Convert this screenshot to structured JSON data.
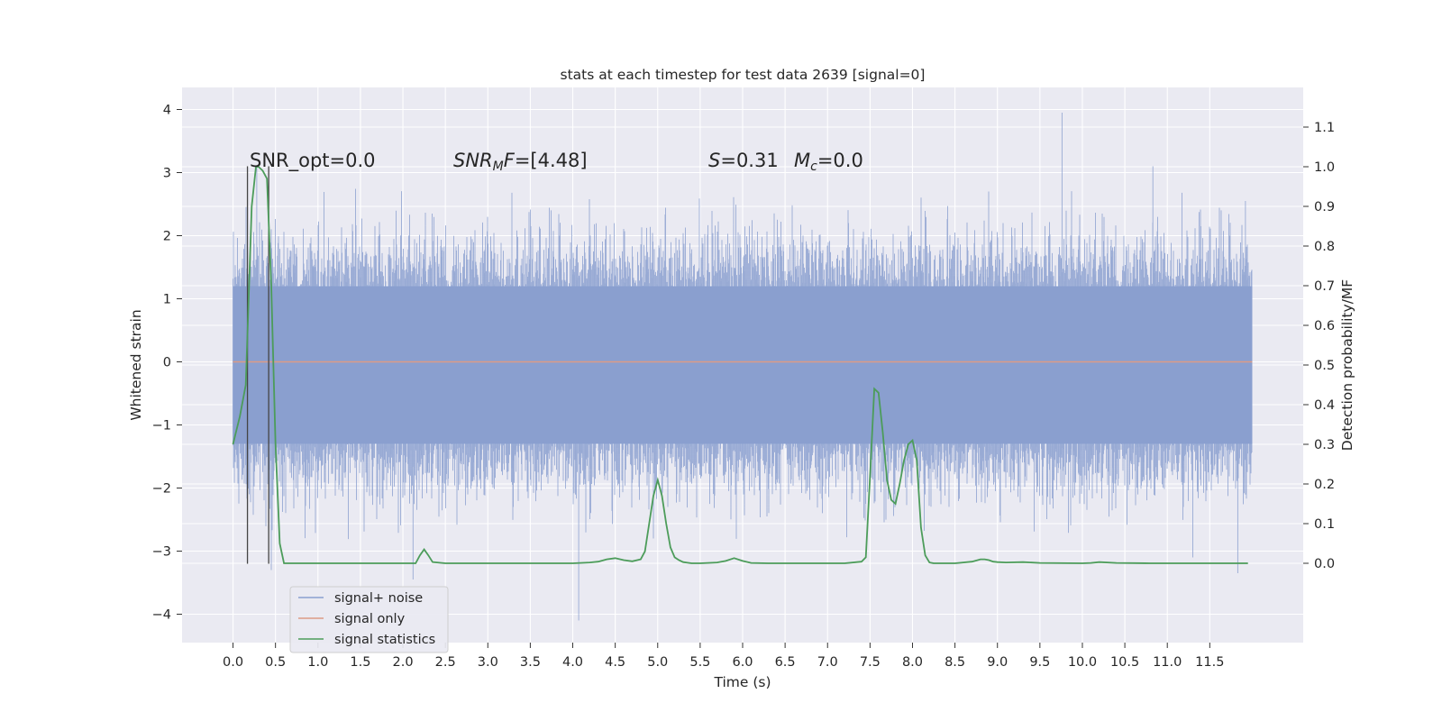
{
  "chart_data": {
    "type": "line",
    "title": "stats at each timestep for test data 2639 [signal=0]",
    "xlabel": "Time (s)",
    "ylabel": "Whitened strain",
    "ylabel_right": "Detection probability/MF",
    "xlim": [
      -0.6,
      12.6
    ],
    "ylim": [
      -4.45,
      4.35
    ],
    "ylim_right": [
      -0.2,
      1.2
    ],
    "grid": true,
    "x_ticks": [
      "0.0",
      "0.5",
      "1.0",
      "1.5",
      "2.0",
      "2.5",
      "3.0",
      "3.5",
      "4.0",
      "4.5",
      "5.0",
      "5.5",
      "6.0",
      "6.5",
      "7.0",
      "7.5",
      "8.0",
      "8.5",
      "9.0",
      "9.5",
      "10.0",
      "10.5",
      "11.0",
      "11.5"
    ],
    "y_ticks": [
      {
        "value": 4,
        "label": "4"
      },
      {
        "value": 3,
        "label": "3"
      },
      {
        "value": 2,
        "label": "2"
      },
      {
        "value": 1,
        "label": "1"
      },
      {
        "value": 0,
        "label": "0"
      },
      {
        "value": -1,
        "label": "−1"
      },
      {
        "value": -2,
        "label": "−2"
      },
      {
        "value": -3,
        "label": "−3"
      },
      {
        "value": -4,
        "label": "−4"
      }
    ],
    "y_ticks_right": [
      "0.0",
      "0.1",
      "0.2",
      "0.3",
      "0.4",
      "0.5",
      "0.6",
      "0.7",
      "0.8",
      "0.9",
      "1.0",
      "1.1"
    ],
    "annotations": [
      "SNR_opt=0.0",
      "SNR_MF=[4.48]",
      "S=0.31",
      "M_c=0.0"
    ],
    "vertical_markers_x": [
      0.17,
      0.42
    ],
    "legend": {
      "placement": "lower-left",
      "entries": [
        {
          "label": "signal+ noise",
          "color": "#8a9fcf"
        },
        {
          "label": "signal only",
          "color": "#dd9b86"
        },
        {
          "label": "signal statistics",
          "color": "#4c9c5a"
        }
      ]
    },
    "series": [
      {
        "name": "signal+ noise",
        "axis": "left",
        "style": "dense noise, 4096 Hz, x 0.0 to 12.0 s",
        "x_range": [
          0.0,
          12.0
        ],
        "typical_band": [
          -1.3,
          1.2
        ],
        "extremes": [
          {
            "x": 0.28,
            "y": 3.1
          },
          {
            "x": 0.45,
            "y": -3.3
          },
          {
            "x": 2.12,
            "y": -3.45
          },
          {
            "x": 4.07,
            "y": -4.1
          },
          {
            "x": 9.76,
            "y": 3.95
          },
          {
            "x": 10.83,
            "y": 3.1
          },
          {
            "x": 11.3,
            "y": -3.1
          },
          {
            "x": 11.83,
            "y": -3.35
          },
          {
            "x": 11.92,
            "y": 2.55
          }
        ]
      },
      {
        "name": "signal only",
        "axis": "left",
        "x": [
          0.0,
          12.0
        ],
        "y": [
          0.0,
          0.0
        ]
      },
      {
        "name": "signal statistics",
        "axis": "right",
        "x": [
          0.0,
          0.08,
          0.15,
          0.22,
          0.27,
          0.3,
          0.35,
          0.4,
          0.45,
          0.5,
          0.55,
          0.6,
          0.7,
          1.0,
          1.5,
          2.0,
          2.1,
          2.15,
          2.2,
          2.25,
          2.3,
          2.35,
          2.5,
          3.0,
          3.5,
          4.0,
          4.2,
          4.3,
          4.4,
          4.5,
          4.6,
          4.7,
          4.8,
          4.85,
          4.9,
          4.95,
          5.0,
          5.05,
          5.1,
          5.15,
          5.2,
          5.25,
          5.3,
          5.4,
          5.5,
          5.7,
          5.8,
          5.9,
          6.0,
          6.1,
          6.3,
          6.8,
          7.2,
          7.4,
          7.45,
          7.5,
          7.55,
          7.6,
          7.65,
          7.7,
          7.75,
          7.8,
          7.85,
          7.9,
          7.95,
          8.0,
          8.05,
          8.1,
          8.15,
          8.2,
          8.25,
          8.3,
          8.35,
          8.5,
          8.7,
          8.8,
          8.85,
          8.9,
          8.95,
          9.0,
          9.1,
          9.3,
          9.5,
          10.0,
          10.1,
          10.2,
          10.4,
          10.8,
          10.9,
          11.0,
          11.5,
          11.7,
          11.9,
          11.95
        ],
        "y": [
          0.3,
          0.37,
          0.45,
          0.9,
          1.0,
          1.0,
          0.99,
          0.97,
          0.7,
          0.3,
          0.05,
          0.0,
          0.0,
          0.0,
          0.0,
          0.0,
          0.0,
          0.0,
          0.02,
          0.035,
          0.02,
          0.003,
          0.0,
          0.0,
          0.0,
          0.0,
          0.002,
          0.004,
          0.01,
          0.013,
          0.008,
          0.005,
          0.01,
          0.03,
          0.1,
          0.17,
          0.21,
          0.17,
          0.1,
          0.04,
          0.015,
          0.008,
          0.003,
          0.0,
          0.0,
          0.002,
          0.006,
          0.013,
          0.006,
          0.001,
          0.0,
          0.0,
          0.0,
          0.004,
          0.015,
          0.22,
          0.44,
          0.43,
          0.33,
          0.21,
          0.16,
          0.15,
          0.2,
          0.26,
          0.3,
          0.31,
          0.26,
          0.09,
          0.02,
          0.002,
          0.0,
          0.0,
          0.0,
          0.0,
          0.004,
          0.01,
          0.01,
          0.008,
          0.004,
          0.003,
          0.002,
          0.003,
          0.001,
          0.0,
          0.001,
          0.003,
          0.001,
          0.0,
          0.0,
          0.0,
          0.0,
          0.0,
          0.0,
          0.0
        ]
      }
    ]
  }
}
